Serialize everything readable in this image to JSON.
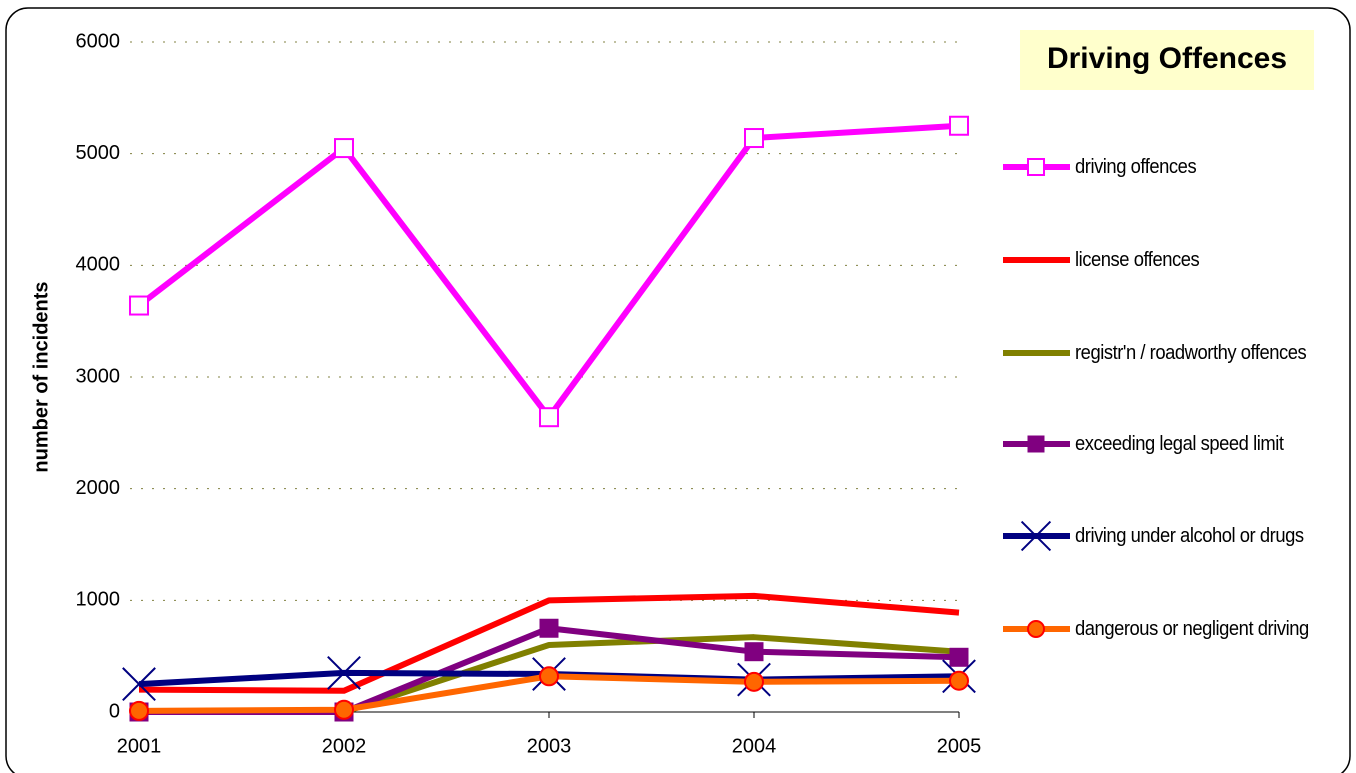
{
  "chart_data": {
    "type": "line",
    "title": "Driving Offences",
    "y_label": "number of incidents",
    "categories": [
      "2001",
      "2002",
      "2003",
      "2004",
      "2005"
    ],
    "series": [
      {
        "name": "driving offences",
        "color": "#ff00ff",
        "marker": "square-open",
        "values": [
          3640,
          5050,
          2640,
          5140,
          5250
        ]
      },
      {
        "name": "license offences",
        "color": "#ff0000",
        "marker": "none",
        "values": [
          200,
          190,
          1000,
          1040,
          890
        ]
      },
      {
        "name": "registr'n / roadworthy offences",
        "color": "#808000",
        "marker": "none",
        "values": [
          0,
          0,
          600,
          670,
          540
        ]
      },
      {
        "name": "exceeding legal speed limit",
        "color": "#800080",
        "marker": "square",
        "values": [
          0,
          0,
          750,
          540,
          490
        ]
      },
      {
        "name": "driving under alcohol or drugs",
        "color": "#000080",
        "marker": "x",
        "values": [
          250,
          350,
          340,
          290,
          320
        ]
      },
      {
        "name": "dangerous or negligent driving",
        "color": "#ff6600",
        "marker": "circle",
        "values": [
          10,
          20,
          320,
          270,
          280
        ]
      }
    ],
    "ylim": [
      0,
      6000
    ],
    "yticks": [
      0,
      1000,
      2000,
      3000,
      4000,
      5000,
      6000
    ],
    "grid": true,
    "legend": "right"
  }
}
